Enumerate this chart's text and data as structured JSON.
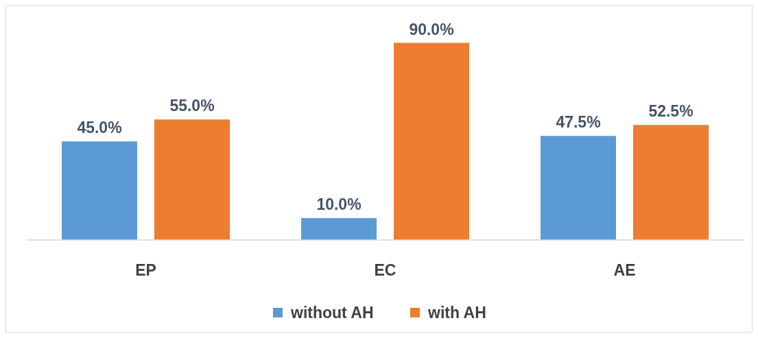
{
  "chart_data": {
    "type": "bar",
    "categories": [
      "EP",
      "EC",
      "AE"
    ],
    "series": [
      {
        "name": "without AH",
        "color": "#5b9bd5",
        "values": [
          45,
          10,
          47.5
        ],
        "value_labels": [
          "45.0%",
          "10.0%",
          "47.5%"
        ]
      },
      {
        "name": "with AH",
        "color": "#ed7d31",
        "values": [
          55,
          90,
          52.5
        ],
        "value_labels": [
          "55.0%",
          "90.0%",
          "52.5%"
        ]
      }
    ],
    "legend": "bottom",
    "grid": false
  }
}
